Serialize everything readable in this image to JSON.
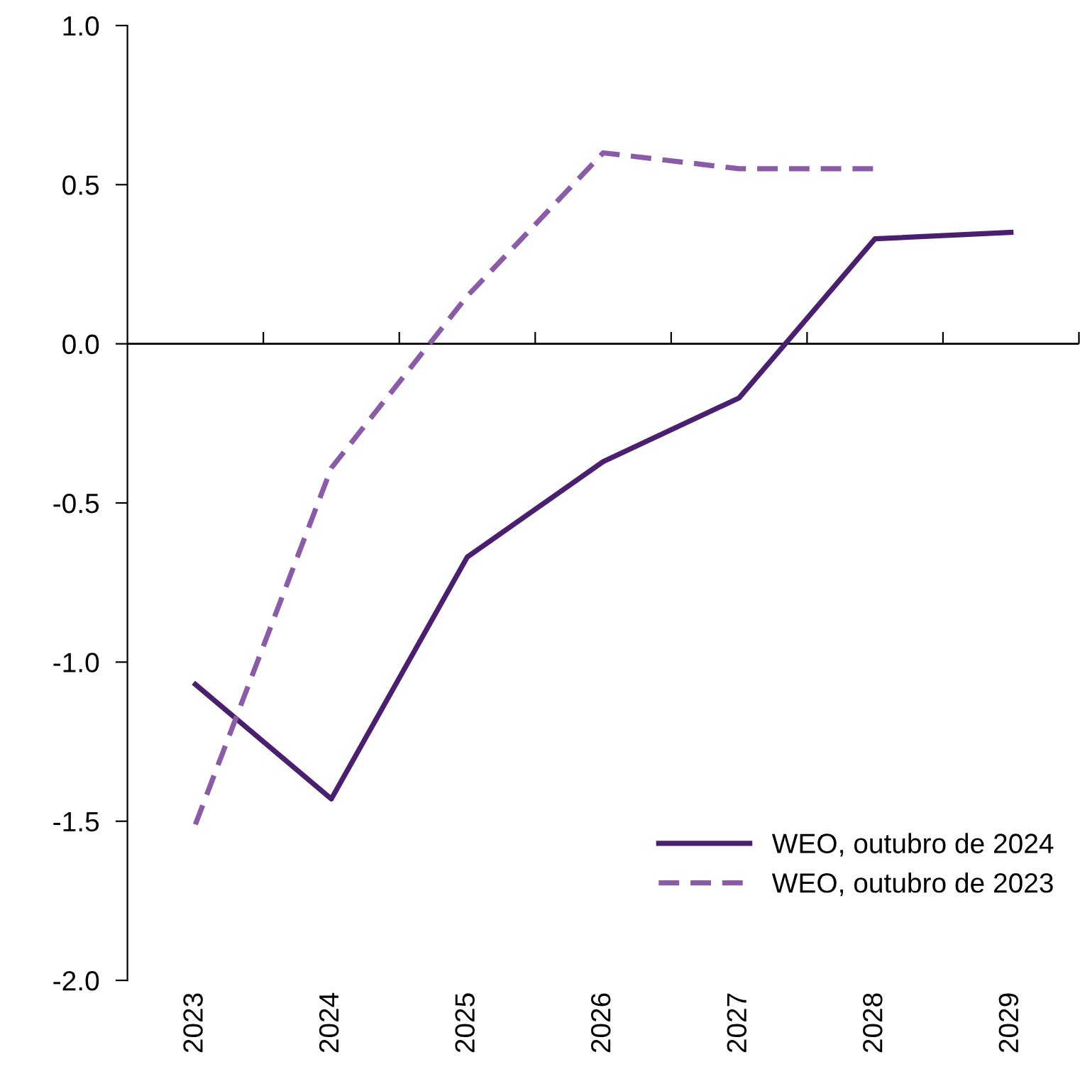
{
  "chart_data": {
    "type": "line",
    "categories": [
      "2023",
      "2024",
      "2025",
      "2026",
      "2027",
      "2028",
      "2029"
    ],
    "series": [
      {
        "name": "WEO, outubro de 2024",
        "color": "#4b1f6f",
        "line_style": "solid",
        "values": [
          -1.07,
          -1.43,
          -0.67,
          -0.37,
          -0.17,
          0.33,
          0.35
        ]
      },
      {
        "name": "WEO, outubro de 2023",
        "color": "#8a5ca8",
        "line_style": "dashed",
        "values": [
          -1.51,
          -0.39,
          0.15,
          0.6,
          0.55,
          0.55,
          null
        ]
      }
    ],
    "ylim": [
      -2.0,
      1.0
    ],
    "yticks": [
      {
        "value": -2.0,
        "label": "-2.0"
      },
      {
        "value": -1.5,
        "label": "-1.5"
      },
      {
        "value": -1.0,
        "label": "-1.0"
      },
      {
        "value": -0.5,
        "label": "-0.5"
      },
      {
        "value": 0.0,
        "label": "0.0"
      },
      {
        "value": 0.5,
        "label": "0.5"
      },
      {
        "value": 1.0,
        "label": "1.0"
      }
    ],
    "ref_lines": [
      {
        "axis": "y",
        "value": 0.0,
        "color": "#000000",
        "line_style": "solid"
      }
    ],
    "grid": false,
    "legend": "bottom right",
    "marker": "none"
  }
}
